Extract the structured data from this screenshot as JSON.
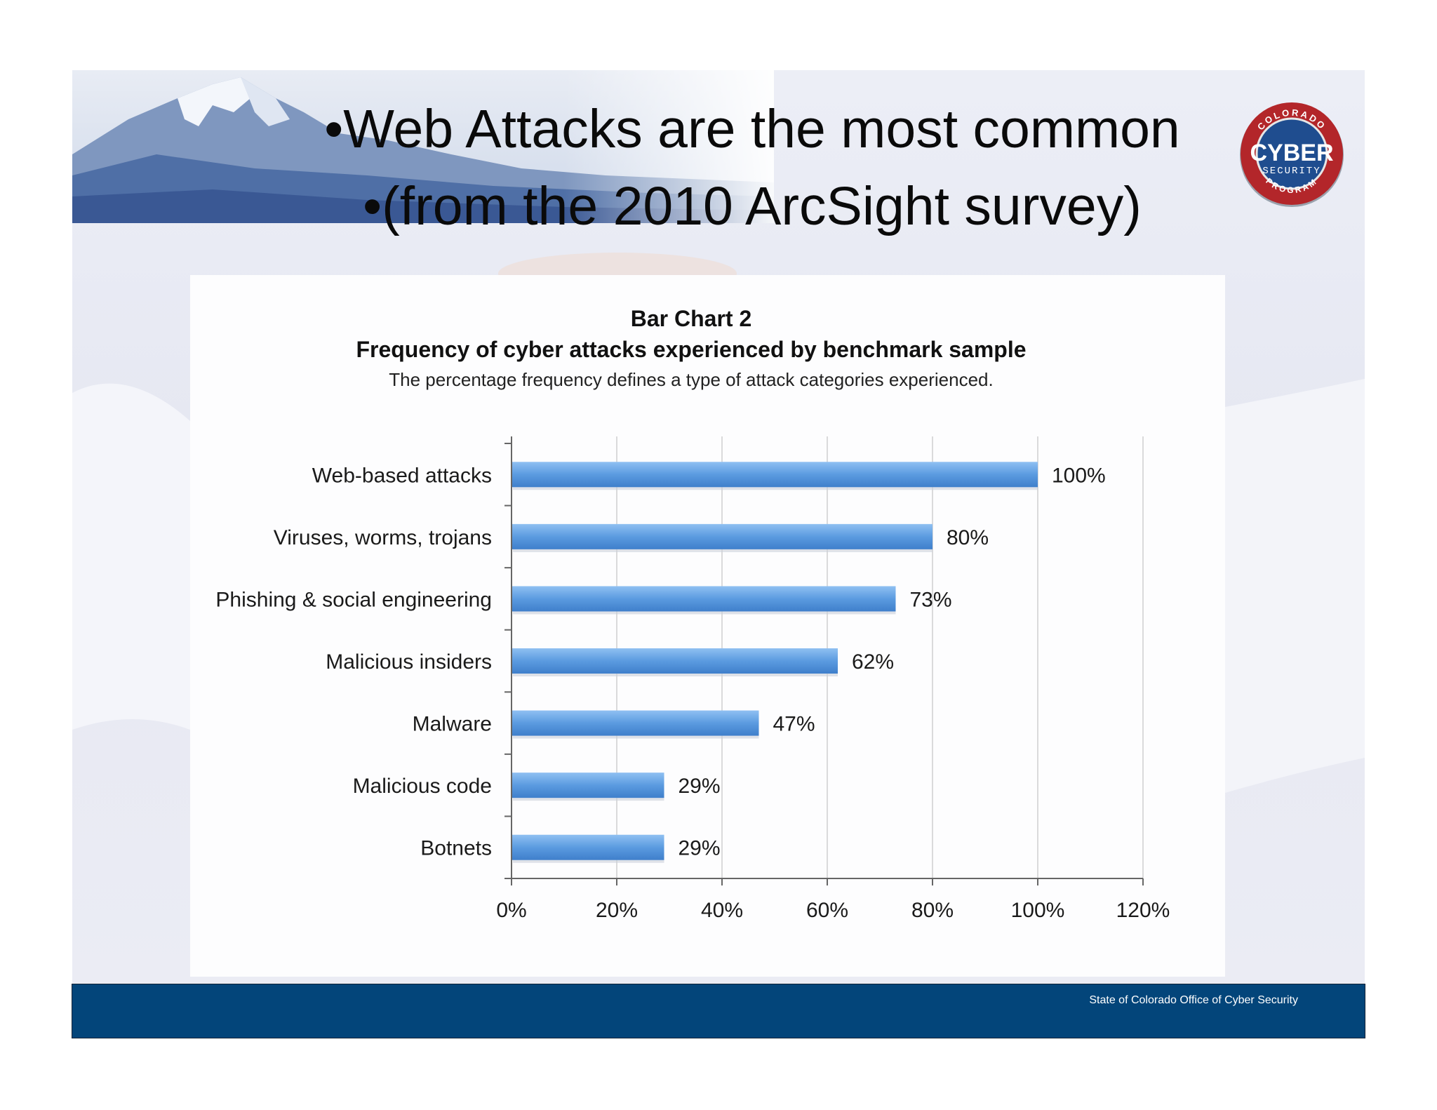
{
  "slide": {
    "title_line_1": "•Web Attacks are the most common",
    "title_line_2": "•(from the 2010 ArcSight survey)",
    "footer_text": "State of Colorado Office of Cyber Security"
  },
  "logo": {
    "top_text": "COLORADO",
    "main_text": "CYBER",
    "sub_text": "SECURITY",
    "bottom_text": "PROGRAM",
    "ring_color": "#b3262a",
    "center_color": "#1f4d8f"
  },
  "colors": {
    "bar": "#5b9be0",
    "footer": "#03457a",
    "grid": "#cfcfcf"
  },
  "chart_data": {
    "type": "bar",
    "orientation": "horizontal",
    "title": "Bar Chart 2",
    "subtitle": "Frequency of cyber attacks experienced by benchmark sample",
    "caption": "The percentage frequency defines a type of attack categories experienced.",
    "categories": [
      "Web-based attacks",
      "Viruses, worms, trojans",
      "Phishing & social engineering",
      "Malicious insiders",
      "Malware",
      "Malicious code",
      "Botnets"
    ],
    "values": [
      100,
      80,
      73,
      62,
      47,
      29,
      29
    ],
    "value_labels": [
      "100%",
      "80%",
      "73%",
      "62%",
      "47%",
      "29%",
      "29%"
    ],
    "xlim": [
      0,
      120
    ],
    "xticks": [
      0,
      20,
      40,
      60,
      80,
      100,
      120
    ],
    "xtick_labels": [
      "0%",
      "20%",
      "40%",
      "60%",
      "80%",
      "100%",
      "120%"
    ],
    "grid": true,
    "legend": "none"
  }
}
